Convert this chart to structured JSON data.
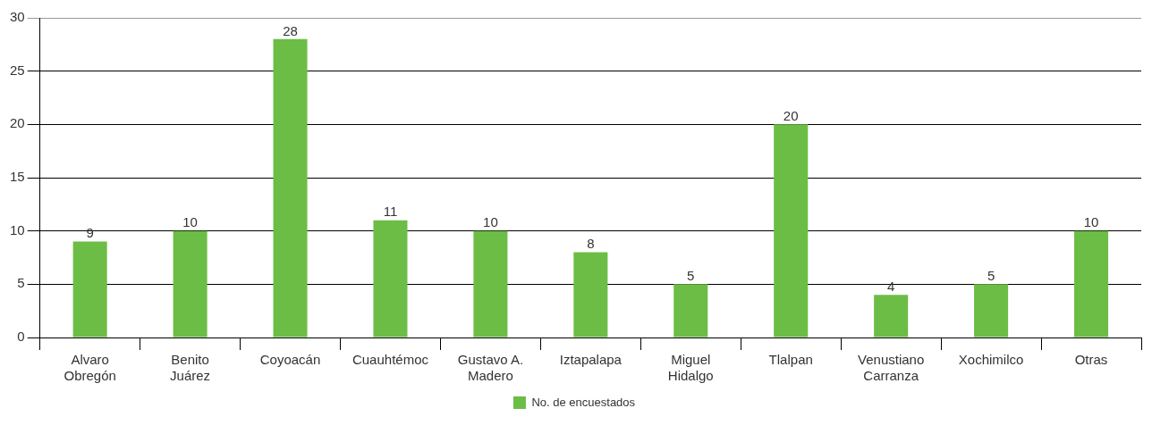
{
  "chart_data": {
    "type": "bar",
    "categories": [
      "Alvaro Obregón",
      "Benito Juárez",
      "Coyoacán",
      "Cuauhtémoc",
      "Gustavo A. Madero",
      "Iztapalapa",
      "Miguel Hidalgo",
      "Tlalpan",
      "Venustiano Carranza",
      "Xochimilco",
      "Otras"
    ],
    "series": [
      {
        "name": "No. de encuestados",
        "color": "#6cbd45",
        "values": [
          9,
          10,
          28,
          11,
          10,
          8,
          5,
          20,
          4,
          5,
          10
        ]
      }
    ],
    "ylim": [
      0,
      30
    ],
    "yticks": [
      0,
      5,
      10,
      15,
      20,
      25,
      30
    ],
    "grid": "y",
    "legend": "bottom",
    "data_labels": true
  }
}
